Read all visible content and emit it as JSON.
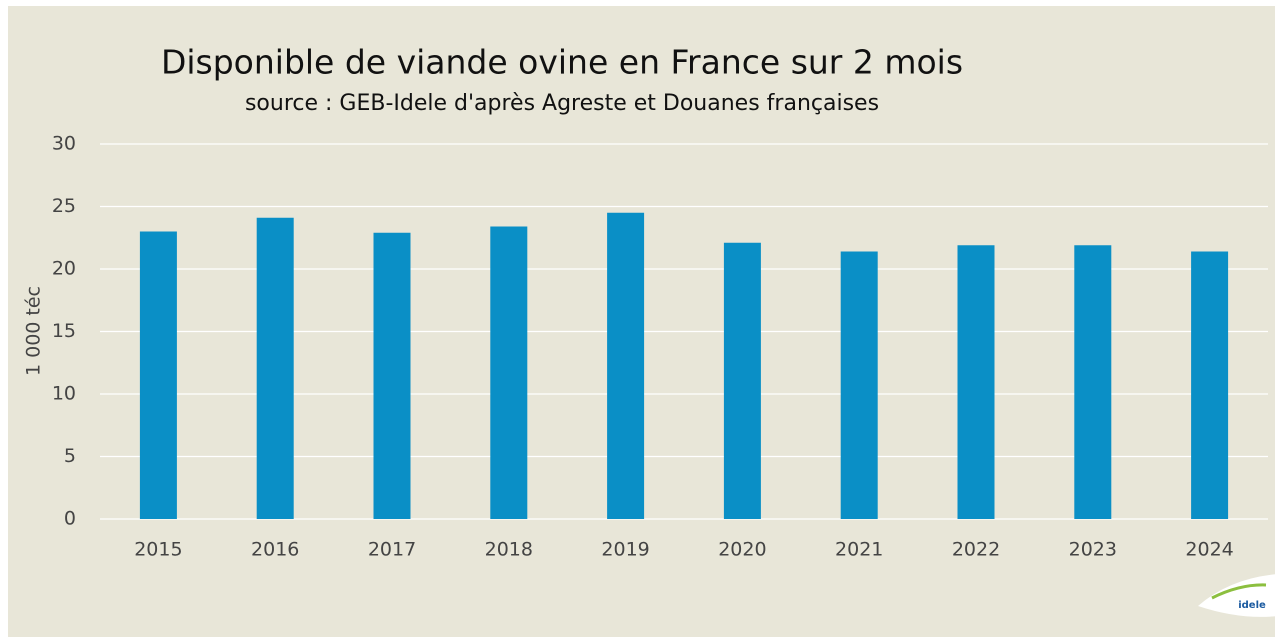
{
  "chart_data": {
    "type": "bar",
    "title": "Disponible de viande ovine en France sur 2 mois",
    "subtitle": "source : GEB-Idele d'après Agreste et Douanes françaises",
    "y_label": "1 000 téc",
    "categories": [
      "2015",
      "2016",
      "2017",
      "2018",
      "2019",
      "2020",
      "2021",
      "2022",
      "2023",
      "2024"
    ],
    "values": [
      23.0,
      24.1,
      22.9,
      23.4,
      24.5,
      22.1,
      21.4,
      21.9,
      21.9,
      21.4
    ],
    "color": "#0a8fc6",
    "ylim": [
      0,
      30
    ],
    "yticks": [
      0,
      5,
      10,
      15,
      20,
      25,
      30
    ],
    "grid": true,
    "logo": "idele"
  }
}
